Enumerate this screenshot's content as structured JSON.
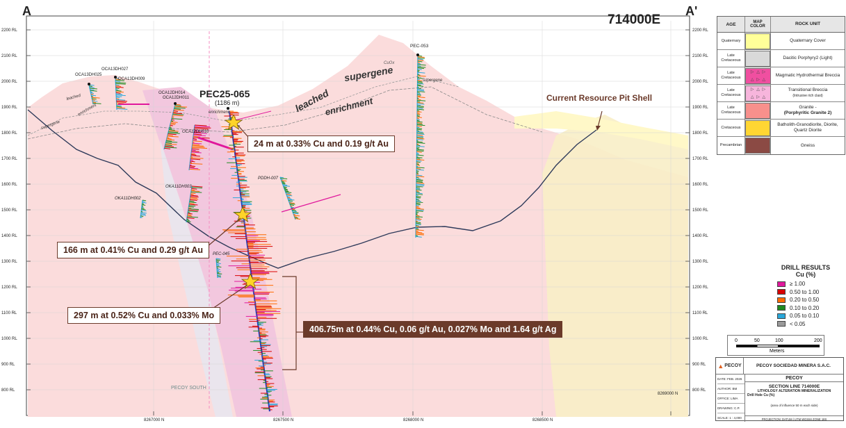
{
  "section": {
    "left_label": "A",
    "right_label": "A'",
    "easting": "714000E"
  },
  "rl_left": [
    "2200 RL",
    "2100 RL",
    "2000 RL",
    "1900 RL",
    "1800 RL",
    "1700 RL",
    "1600 RL",
    "1500 RL",
    "1400 RL",
    "1300 RL",
    "1200 RL",
    "1100 RL",
    "1000 RL",
    "900 RL",
    "800 RL"
  ],
  "rl_right": [
    "2200 RL",
    "2100 RL",
    "2000 RL",
    "1900 RL",
    "1800 RL",
    "1700 RL",
    "1600 RL",
    "1500 RL",
    "1400 RL",
    "1300 RL",
    "1200 RL",
    "1100 RL",
    "1000 RL",
    "900 RL",
    "800 RL"
  ],
  "northings": [
    "8267000 N",
    "8267500 N",
    "8268000 N",
    "8268500 N",
    "8269000 N"
  ],
  "zone_labels": {
    "leached": "leached",
    "supergene": "supergene",
    "enrichment": "enrichment",
    "cuox": "CuOx",
    "pecoy_south": "PECOY SOUTH",
    "supergene_small1": "supergene",
    "supergene_small2": "supergene",
    "leached_small": "leached",
    "enrichment_small": "enrichment",
    "enrichment_small2": "enrichment"
  },
  "holes": [
    {
      "id": "OCA13DH025"
    },
    {
      "id": "OCA13DH027"
    },
    {
      "id": "OCA13DH009"
    },
    {
      "id": "OCA12DH014"
    },
    {
      "id": "OCA12DH011"
    },
    {
      "id": "OCA12DH010"
    },
    {
      "id": "OKA11DH003"
    },
    {
      "id": "OKA11DH002"
    },
    {
      "id": "PDDH-007"
    },
    {
      "id": "PEC-053"
    },
    {
      "id": "PEC-045"
    }
  ],
  "main_hole": {
    "name": "PEC25-065",
    "length": "(1186 m)"
  },
  "callouts": [
    "24 m at 0.33% Cu and 0.19 g/t Au",
    "166 m at 0.41% Cu and 0.29 g/t Au",
    "297 m at 0.52% Cu and 0.033% Mo",
    "406.75m at 0.44% Cu, 0.06 g/t Au, 0.027% Mo and 1.64 g/t Ag"
  ],
  "pit_shell_label": "Current Resource Pit Shell",
  "legend": {
    "headers": [
      "AGE",
      "MAP COLOR",
      "ROCK UNIT"
    ],
    "rows": [
      {
        "age": "Quaternary",
        "color": "#ffff99",
        "unit": "Quaternary Cover",
        "unit2": ""
      },
      {
        "age": "Late Cretaceous",
        "color": "#d9d9d9",
        "unit": "Dacitic Porphyry2 (Light)",
        "unit2": ""
      },
      {
        "age": "Late Cretaceous",
        "color": "#f04fa0",
        "unit": "Magmatic Hydrothermal Breccia",
        "unit2": ""
      },
      {
        "age": "Late Cretaceous",
        "color": "#f7b5dc",
        "unit": "Transitional Breccia",
        "unit2": "(Intrusive rich clast)"
      },
      {
        "age": "Late Cretaceous",
        "color": "#f8908c",
        "unit": "Granite -",
        "unit2": "(Porphyritic Granite 2)"
      },
      {
        "age": "Cretaceous",
        "color": "#ffd633",
        "unit": "Batholith-Granodiorite, Diorite, Quartz Diorite",
        "unit2": ""
      },
      {
        "age": "Precambrian",
        "color": "#8b4a44",
        "unit": "Gneiss",
        "unit2": ""
      }
    ]
  },
  "drill_results": {
    "title": "DRILL RESULTS",
    "subtitle": "Cu (%)",
    "bins": [
      {
        "label": "≥ 1.00",
        "color": "#e0189c"
      },
      {
        "label": "0.50  to  1.00",
        "color": "#d80000"
      },
      {
        "label": "0.20  to  0.50",
        "color": "#ff6a00"
      },
      {
        "label": "0.10  to  0.20",
        "color": "#1f8a1f"
      },
      {
        "label": "0.05  to  0.10",
        "color": "#2aa7d9"
      },
      {
        "label": "< 0.05",
        "color": "#9a9a9a"
      }
    ]
  },
  "scale_bar": {
    "ticks": [
      "0",
      "50",
      "100",
      "200"
    ],
    "unit": "Meters"
  },
  "title_block": {
    "company": "PECOY SOCIEDAD MINERA S.A.C.",
    "logo": "PECOY",
    "project": "PECOY",
    "section": "SECTION LINE 714000E",
    "subtitle": "LITHOLOGY ALTERATION MINERALIZATION",
    "subtitle2": "Drill Hole  Cu (%)",
    "date": "DATE: FEB. 2026",
    "author": "AUTHOR: BM",
    "office": "OFFICE: LIMA",
    "drawing": "DRAWING: C.P.",
    "scale": "SCALE:  1 : 4,000",
    "influence": "(area of influence 50 m each side)",
    "projection": "PROJECTION: DATUM | UTM WGS84 ZONE 18S"
  }
}
